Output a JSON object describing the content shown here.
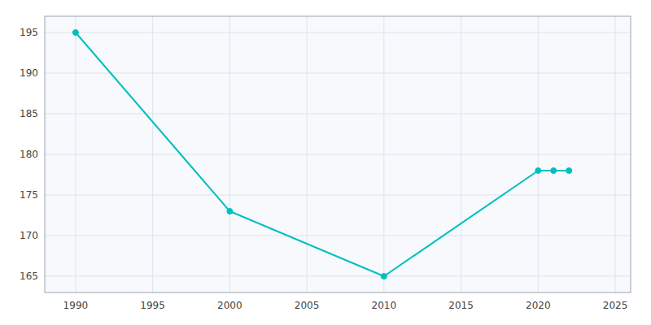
{
  "chart_data": {
    "type": "line",
    "x": [
      1990,
      2000,
      2010,
      2020,
      2021,
      2022
    ],
    "values": [
      195,
      173,
      165,
      178,
      178,
      178
    ],
    "color": "#00BFBF",
    "marker": "circle",
    "xlim": [
      1988,
      2026
    ],
    "ylim": [
      163,
      197
    ],
    "xticks": [
      1990,
      1995,
      2000,
      2005,
      2010,
      2015,
      2020,
      2025
    ],
    "yticks": [
      165,
      170,
      175,
      180,
      185,
      190,
      195
    ],
    "grid": true
  }
}
